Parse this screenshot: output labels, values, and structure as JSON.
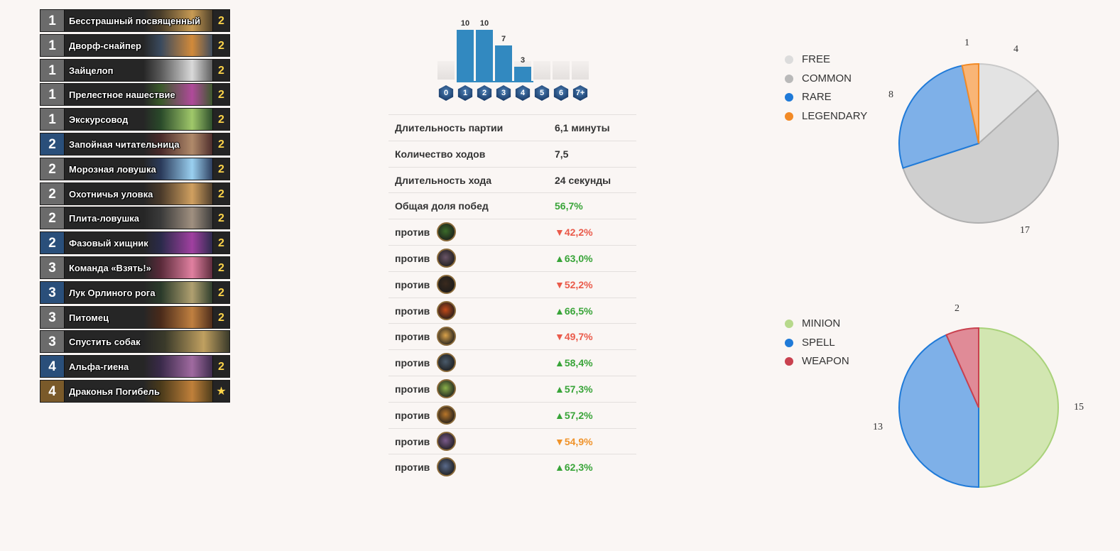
{
  "deck": [
    {
      "cost": "1",
      "name": "Бесстрашный посвященный",
      "count": "2",
      "rarity": "common"
    },
    {
      "cost": "1",
      "name": "Дворф-снайпер",
      "count": "2",
      "rarity": "common"
    },
    {
      "cost": "1",
      "name": "Зайцелоп",
      "count": "2",
      "rarity": "common"
    },
    {
      "cost": "1",
      "name": "Прелестное нашествие",
      "count": "2",
      "rarity": "common"
    },
    {
      "cost": "1",
      "name": "Экскурсовод",
      "count": "2",
      "rarity": "common"
    },
    {
      "cost": "2",
      "name": "Запойная читательница",
      "count": "2",
      "rarity": "rare"
    },
    {
      "cost": "2",
      "name": "Морозная ловушка",
      "count": "2",
      "rarity": "common"
    },
    {
      "cost": "2",
      "name": "Охотничья уловка",
      "count": "2",
      "rarity": "common"
    },
    {
      "cost": "2",
      "name": "Плита-ловушка",
      "count": "2",
      "rarity": "common"
    },
    {
      "cost": "2",
      "name": "Фазовый хищник",
      "count": "2",
      "rarity": "rare"
    },
    {
      "cost": "3",
      "name": "Команда «Взять!»",
      "count": "2",
      "rarity": "common"
    },
    {
      "cost": "3",
      "name": "Лук Орлиного рога",
      "count": "2",
      "rarity": "rare"
    },
    {
      "cost": "3",
      "name": "Питомец",
      "count": "2",
      "rarity": "common"
    },
    {
      "cost": "3",
      "name": "Спустить собак",
      "count": "",
      "rarity": "common"
    },
    {
      "cost": "4",
      "name": "Альфа-гиена",
      "count": "2",
      "rarity": "rare"
    },
    {
      "cost": "4",
      "name": "Драконья Погибель",
      "count": "★",
      "rarity": "legendary"
    }
  ],
  "rarity_colors": {
    "common": "#6b6b6b",
    "rare": "#2a4f7a",
    "legendary": "#7a5a2a"
  },
  "mana_curve": {
    "labels": [
      "0",
      "1",
      "2",
      "3",
      "4",
      "5",
      "6",
      "7+"
    ],
    "values": [
      0,
      10,
      10,
      7,
      3,
      0,
      0,
      0
    ],
    "value_labels": [
      "",
      "10",
      "10",
      "7",
      "3",
      "",
      "",
      ""
    ]
  },
  "stats": [
    {
      "label": "Длительность партии",
      "value": "6,1 минуты",
      "green": false
    },
    {
      "label": "Количество ходов",
      "value": "7,5",
      "green": false
    },
    {
      "label": "Длительность хода",
      "value": "24 секунды",
      "green": false
    },
    {
      "label": "Общая доля побед",
      "value": "56,7%",
      "green": true
    }
  ],
  "vs": [
    {
      "label": "против",
      "icon": "druid-icon",
      "value": "▼42,2%",
      "tone": "red",
      "color": "#3b6b2a"
    },
    {
      "label": "против",
      "icon": "warrior-icon",
      "value": "▲63,0%",
      "tone": "green",
      "color": "#6a5566"
    },
    {
      "label": "против",
      "icon": "rogue-icon",
      "value": "▼52,2%",
      "tone": "red",
      "color": "#3a2a1e"
    },
    {
      "label": "против",
      "icon": "mage-icon",
      "value": "▲66,5%",
      "tone": "green",
      "color": "#c24a1a"
    },
    {
      "label": "против",
      "icon": "paladin-icon",
      "value": "▼49,7%",
      "tone": "red",
      "color": "#d9a24a"
    },
    {
      "label": "против",
      "icon": "warrior-shield-icon",
      "value": "▲58,4%",
      "tone": "green",
      "color": "#4a5a6a"
    },
    {
      "label": "против",
      "icon": "shaman-icon",
      "value": "▲57,3%",
      "tone": "green",
      "color": "#8ab04a"
    },
    {
      "label": "против",
      "icon": "warlock-icon",
      "value": "▲57,2%",
      "tone": "green",
      "color": "#b8762a"
    },
    {
      "label": "против",
      "icon": "priest-icon",
      "value": "▼54,9%",
      "tone": "orange",
      "color": "#7a5a8a"
    },
    {
      "label": "против",
      "icon": "hunter-icon",
      "value": "▲62,3%",
      "tone": "green",
      "color": "#5a6a8a"
    }
  ],
  "chart_data": [
    {
      "type": "pie",
      "legend": [
        "FREE",
        "COMMON",
        "RARE",
        "LEGENDARY"
      ],
      "values": [
        4,
        17,
        8,
        1
      ],
      "value_labels": [
        "4",
        "17",
        "8",
        "1"
      ],
      "colors": [
        "#e3e3e3",
        "#cfcfcf",
        "#7eb0e8",
        "#f9b576"
      ],
      "strokes": [
        "#c9c9c9",
        "#b0b0b0",
        "#1f7ad8",
        "#f28a26"
      ],
      "legend_colors": [
        "#dcdcdc",
        "#b9b9b9",
        "#1f7ad8",
        "#f28a26"
      ],
      "legend_placement": "left"
    },
    {
      "type": "pie",
      "legend": [
        "MINION",
        "SPELL",
        "WEAPON"
      ],
      "values": [
        15,
        13,
        2
      ],
      "value_labels": [
        "15",
        "13",
        "2"
      ],
      "colors": [
        "#d2e6b1",
        "#7eb0e8",
        "#e08b97"
      ],
      "strokes": [
        "#a9d27a",
        "#1f7ad8",
        "#c9414f"
      ],
      "legend_colors": [
        "#b7d98c",
        "#1f7ad8",
        "#c9414f"
      ],
      "legend_placement": "left"
    }
  ]
}
